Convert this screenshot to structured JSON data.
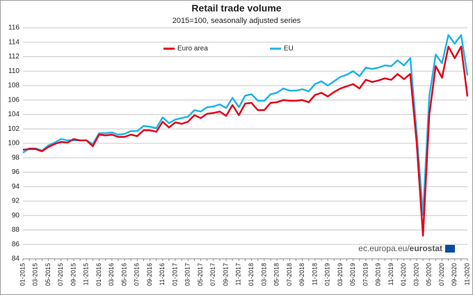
{
  "chart_data": {
    "type": "line",
    "title": "Retail trade volume",
    "subtitle": "2015=100, seasonally adjusted series",
    "source": "ec.europa.eu/",
    "source_brand": "eurostat",
    "categories": [
      "01-2015",
      null,
      "03-2015",
      null,
      "05-2015",
      null,
      "07-2015",
      null,
      "09-2015",
      null,
      "11-2015",
      null,
      "01-2016",
      null,
      "03-2016",
      null,
      "05-2016",
      null,
      "07-2016",
      null,
      "09-2016",
      null,
      "11-2016",
      null,
      "01-2017",
      null,
      "03-2017",
      null,
      "05-2017",
      null,
      "07-2017",
      null,
      "09-2017",
      null,
      "11-2017",
      null,
      "01-2018",
      null,
      "03-2018",
      null,
      "05-2018",
      null,
      "07-2018",
      null,
      "09-2018",
      null,
      "11-2018",
      null,
      "01-2019",
      null,
      "03-2019",
      null,
      "05-2019",
      null,
      "07-2019",
      null,
      "09-2019",
      null,
      "11-2019",
      null,
      "01-2020",
      null,
      "03-2020",
      null,
      "05-2020",
      null,
      "07-2020",
      null,
      "09-2020",
      null,
      "11-2020"
    ],
    "series": [
      {
        "name": "Euro area",
        "color": "#e3001b",
        "values": [
          99.1,
          99.2,
          99.2,
          98.9,
          99.5,
          99.9,
          100.2,
          100.1,
          100.6,
          100.4,
          100.4,
          99.6,
          101.2,
          101.1,
          101.2,
          100.9,
          100.9,
          101.2,
          101.0,
          101.8,
          101.8,
          101.6,
          103.0,
          102.2,
          102.9,
          102.7,
          103.0,
          103.9,
          103.5,
          104.1,
          104.2,
          104.4,
          103.8,
          105.3,
          103.9,
          105.5,
          105.6,
          104.6,
          104.6,
          105.6,
          105.7,
          106.0,
          105.9,
          105.9,
          106.0,
          105.7,
          106.7,
          107.0,
          106.5,
          107.1,
          107.6,
          107.9,
          108.2,
          107.6,
          108.8,
          108.5,
          108.7,
          109.0,
          108.8,
          109.6,
          108.9,
          109.6,
          100.1,
          87.2,
          104.0,
          110.7,
          109.1,
          113.4,
          111.8,
          113.4,
          106.5
        ]
      },
      {
        "name": "EU",
        "color": "#1eb4e6",
        "values": [
          98.7,
          99.3,
          99.3,
          99.0,
          99.7,
          100.1,
          100.6,
          100.4,
          100.4,
          100.4,
          100.4,
          99.9,
          101.4,
          101.4,
          101.5,
          101.2,
          101.3,
          101.7,
          101.7,
          102.4,
          102.3,
          102.1,
          103.6,
          102.8,
          103.3,
          103.5,
          103.7,
          104.6,
          104.4,
          105.0,
          105.1,
          105.4,
          104.9,
          106.3,
          105.0,
          106.6,
          106.8,
          105.9,
          105.9,
          106.8,
          107.0,
          107.6,
          107.3,
          107.3,
          107.5,
          107.2,
          108.2,
          108.6,
          108.0,
          108.6,
          109.2,
          109.5,
          110.0,
          109.3,
          110.5,
          110.3,
          110.5,
          110.8,
          110.7,
          111.5,
          110.8,
          111.8,
          101.5,
          90.1,
          106.5,
          112.3,
          111.1,
          115.0,
          113.8,
          115.0,
          109.4
        ]
      }
    ],
    "ylim": [
      84,
      116
    ],
    "yticks": [
      84,
      86,
      88,
      90,
      92,
      94,
      96,
      98,
      100,
      102,
      104,
      106,
      108,
      110,
      112,
      114,
      116
    ],
    "grid": true
  }
}
